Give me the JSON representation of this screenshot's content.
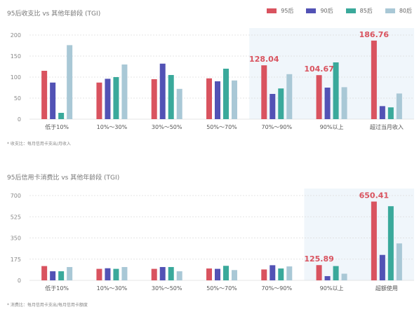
{
  "legend": {
    "items": [
      {
        "label": "95后",
        "color": "#d9535f"
      },
      {
        "label": "90后",
        "color": "#5252b5"
      },
      {
        "label": "85后",
        "color": "#3aa99b"
      },
      {
        "label": "80后",
        "color": "#a9c8d6"
      }
    ]
  },
  "chart1_title": "95后收支比 vs 其他年龄段 (TGI)",
  "chart1_note": "* 收支比：每月信用卡支出/月收入",
  "chart2_title": "95后信用卡消费比 vs 其他年龄段 (TGI)",
  "chart2_note": "* 消费比：每月信用卡支出/每月信用卡额度",
  "chart_data": [
    {
      "type": "bar",
      "title": "95后收支比 vs 其他年龄段 (TGI)",
      "categories": [
        "低于10%",
        "10%～30%",
        "30%～50%",
        "50%～70%",
        "70%～90%",
        "90%以上",
        "超过当月收入"
      ],
      "ylim": [
        0,
        200
      ],
      "yticks": [
        "0",
        "50",
        "100",
        "150",
        "200"
      ],
      "grid": true,
      "legend": "top-right",
      "highlight_labels": [
        "",
        "",
        "",
        "",
        "128.04",
        "104.67",
        "186.76"
      ],
      "series": [
        {
          "name": "95后",
          "color": "#d9535f",
          "values": [
            115,
            87,
            95,
            97,
            128.04,
            104.67,
            186.76
          ]
        },
        {
          "name": "90后",
          "color": "#5252b5",
          "values": [
            87,
            96,
            132,
            90,
            60,
            75,
            31
          ]
        },
        {
          "name": "85后",
          "color": "#3aa99b",
          "values": [
            15,
            100,
            105,
            120,
            73,
            135,
            28
          ]
        },
        {
          "name": "80后",
          "color": "#a9c8d6",
          "values": [
            176,
            130,
            72,
            92,
            107,
            76,
            61
          ]
        }
      ]
    },
    {
      "type": "bar",
      "title": "95后信用卡消费比 vs 其他年龄段 (TGI)",
      "categories": [
        "低于10%",
        "10%～30%",
        "30%～50%",
        "50%～70%",
        "70%～90%",
        "90%以上",
        "超额使用"
      ],
      "ylim": [
        0,
        700
      ],
      "yticks": [
        "0",
        "175",
        "350",
        "525",
        "700"
      ],
      "grid": true,
      "legend": "top-right",
      "highlight_labels": [
        "",
        "",
        "",
        "",
        "",
        "125.89",
        "650.41"
      ],
      "series": [
        {
          "name": "95后",
          "color": "#d9535f",
          "values": [
            118,
            95,
            95,
            98,
            90,
            125.89,
            650.41
          ]
        },
        {
          "name": "90后",
          "color": "#5252b5",
          "values": [
            75,
            100,
            110,
            95,
            125,
            35,
            210
          ]
        },
        {
          "name": "85后",
          "color": "#3aa99b",
          "values": [
            75,
            95,
            110,
            120,
            98,
            118,
            612
          ]
        },
        {
          "name": "80后",
          "color": "#a9c8d6",
          "values": [
            110,
            110,
            75,
            85,
            115,
            55,
            305
          ]
        }
      ]
    }
  ]
}
